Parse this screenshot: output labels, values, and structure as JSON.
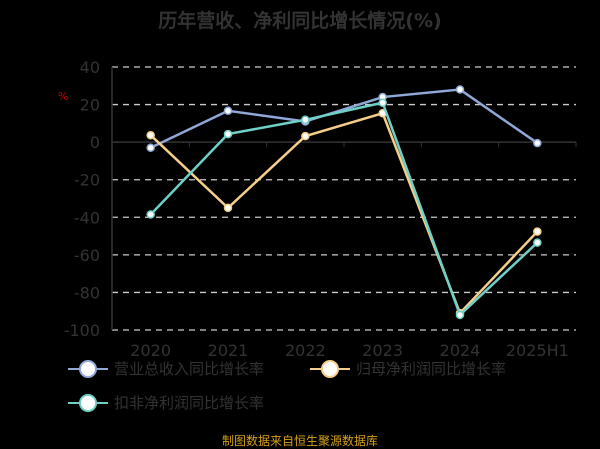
{
  "chart_data": {
    "type": "line",
    "title": "历年营收、净利同比增长情况(%)",
    "ylabel": "%",
    "categories": [
      "2020",
      "2021",
      "2022",
      "2023",
      "2024",
      "2025H1"
    ],
    "ylim": [
      -100,
      40
    ],
    "yticks": [
      "40",
      "20",
      "0",
      "-20",
      "-40",
      "-60",
      "-80",
      "-100"
    ],
    "grid": true,
    "legend": "bottom",
    "series": [
      {
        "name": "营业总收入同比增长率",
        "color": "#8fa8d8",
        "values": [
          -3,
          16.7,
          11,
          24,
          28,
          -0.5
        ]
      },
      {
        "name": "归母净利润同比增长率",
        "color": "#f5cf8a",
        "values": [
          3.7,
          -35,
          3.2,
          15.4,
          -91,
          -47.6
        ]
      },
      {
        "name": "扣非净利润同比增长率",
        "color": "#6fd0c8",
        "values": [
          -38.5,
          4.3,
          11.9,
          21,
          -92,
          -53.5
        ]
      }
    ]
  },
  "footer": "制图数据来自恒生聚源数据库"
}
